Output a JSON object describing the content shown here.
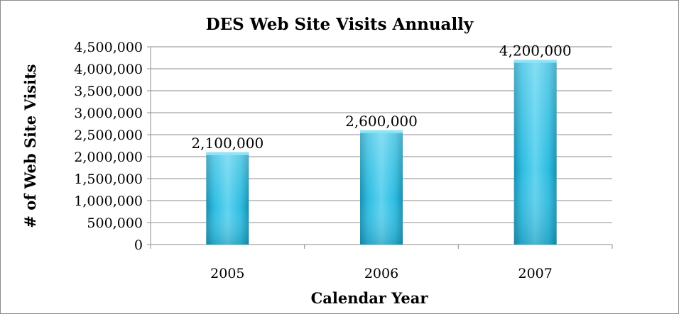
{
  "chart_data": {
    "type": "bar",
    "title": "DES Web Site Visits Annually",
    "xlabel": "Calendar Year",
    "ylabel": "# of Web Site Visits",
    "categories": [
      "2005",
      "2006",
      "2007"
    ],
    "values": [
      2100000,
      2600000,
      4200000
    ],
    "data_labels": [
      "2,100,000",
      "2,600,000",
      "4,200,000"
    ],
    "ylim": [
      0,
      4500000
    ],
    "yticks": [
      0,
      500000,
      1000000,
      1500000,
      2000000,
      2500000,
      3000000,
      3500000,
      4000000,
      4500000
    ],
    "ytick_labels": [
      "0",
      "500,000",
      "1,000,000",
      "1,500,000",
      "2,000,000",
      "2,500,000",
      "3,000,000",
      "3,500,000",
      "4,000,000",
      "4,500,000"
    ],
    "grid": true,
    "legend": "none",
    "colors": {
      "bar_light": "#5fd3f0",
      "bar_mid": "#2bbbe0",
      "bar_dark": "#1a8fb0",
      "grid": "#8c8c8c"
    }
  }
}
